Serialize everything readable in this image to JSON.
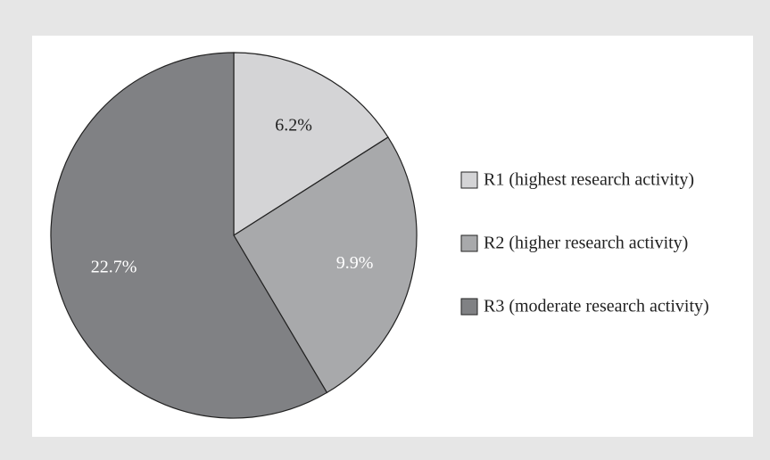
{
  "chart_data": {
    "type": "pie",
    "categories": [
      "R1 (highest research activity)",
      "R2 (higher research activity)",
      "R3 (moderate research activity)"
    ],
    "values": [
      6.2,
      9.9,
      22.7
    ],
    "value_labels": [
      "6.2%",
      "9.9%",
      "22.7%"
    ],
    "colors": [
      "#d4d4d6",
      "#a8a9ab",
      "#808184"
    ],
    "legend": "right"
  }
}
